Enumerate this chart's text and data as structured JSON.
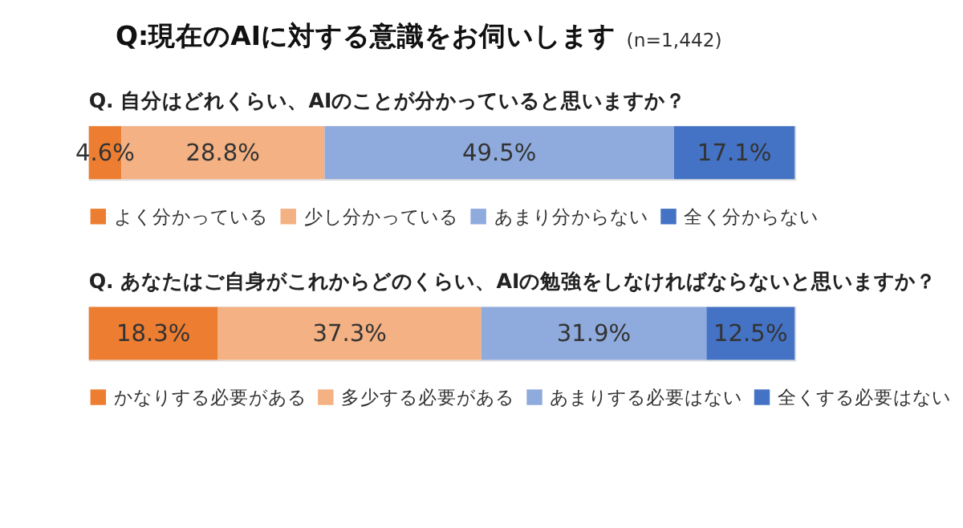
{
  "chart_data": [
    {
      "type": "bar",
      "title": "Q:現在のAIに対する意識をお伺いします",
      "subtitle": "(n=1,442)",
      "annotations": [
        "Q. 自分はどれくらい、AIのことが分かっていると思いますか？"
      ],
      "orientation": "horizontal",
      "stacked": true,
      "categories": [
        null
      ],
      "xlim": [
        0,
        100
      ],
      "legend": "bottom",
      "series": [
        {
          "name": "よく分かっている",
          "color": "#ed7d31",
          "values": [
            4.6
          ],
          "value_labels": [
            "4.6%"
          ]
        },
        {
          "name": "少し分かっている",
          "color": "#f4b183",
          "values": [
            28.8
          ],
          "value_labels": [
            "28.8%"
          ]
        },
        {
          "name": "あまり分からない",
          "color": "#8faadc",
          "values": [
            49.5
          ],
          "value_labels": [
            "49.5%"
          ]
        },
        {
          "name": "全く分からない",
          "color": "#4472c4",
          "values": [
            17.1
          ],
          "value_labels": [
            "17.1%"
          ]
        }
      ]
    },
    {
      "type": "bar",
      "annotations": [
        "Q. あなたはご自身がこれからどのくらい、AIの勉強をしなければならないと思いますか？"
      ],
      "orientation": "horizontal",
      "stacked": true,
      "categories": [
        null
      ],
      "xlim": [
        0,
        100
      ],
      "legend": "bottom",
      "series": [
        {
          "name": "かなりする必要がある",
          "color": "#ed7d31",
          "values": [
            18.3
          ],
          "value_labels": [
            "18.3%"
          ]
        },
        {
          "name": "多少する必要がある",
          "color": "#f4b183",
          "values": [
            37.3
          ],
          "value_labels": [
            "37.3%"
          ]
        },
        {
          "name": "あまりする必要はない",
          "color": "#8faadc",
          "values": [
            31.9
          ],
          "value_labels": [
            "31.9%"
          ]
        },
        {
          "name": "全くする必要はない",
          "color": "#4472c4",
          "values": [
            12.5
          ],
          "value_labels": [
            "12.5%"
          ]
        }
      ]
    }
  ]
}
